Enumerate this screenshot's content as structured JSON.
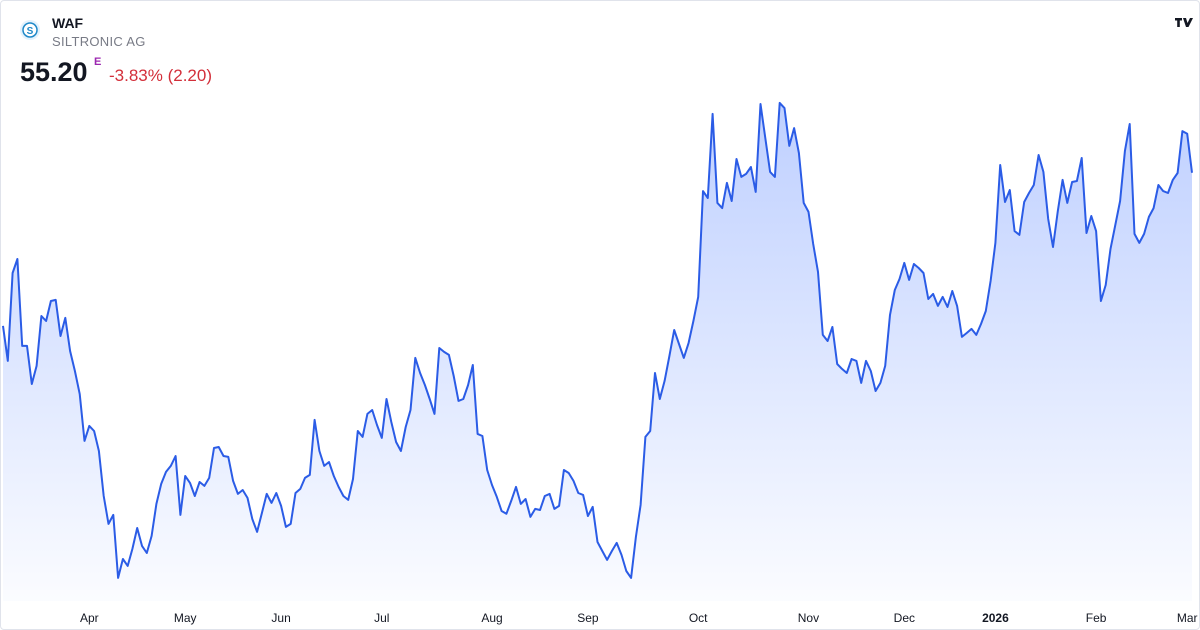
{
  "header": {
    "symbol": "WAF",
    "name": "SILTRONIC AG",
    "price": "55.20",
    "flag": "E",
    "change": "-3.83% (2.20)"
  },
  "chart_data": {
    "type": "area",
    "color": "#2b5ce6",
    "values": [
      46.54,
      44.56,
      49.53,
      50.32,
      45.41,
      45.41,
      43.26,
      44.28,
      47.1,
      46.82,
      47.95,
      48.01,
      45.97,
      46.99,
      45.12,
      43.99,
      42.7,
      40.04,
      40.89,
      40.6,
      39.47,
      36.93,
      35.35,
      35.86,
      32.3,
      33.37,
      32.98,
      33.94,
      35.12,
      34.11,
      33.71,
      34.67,
      36.48,
      37.61,
      38.29,
      38.63,
      39.19,
      35.86,
      38.06,
      37.67,
      36.93,
      37.72,
      37.5,
      37.95,
      39.64,
      39.7,
      39.19,
      39.14,
      37.78,
      37.05,
      37.27,
      36.82,
      35.63,
      34.9,
      35.97,
      37.05,
      36.54,
      37.1,
      36.37,
      35.18,
      35.35,
      37.1,
      37.33,
      37.95,
      38.12,
      41.23,
      39.47,
      38.63,
      38.85,
      38.06,
      37.44,
      36.93,
      36.71,
      37.89,
      40.6,
      40.27,
      41.57,
      41.79,
      40.94,
      40.21,
      42.41,
      41.11,
      39.98,
      39.47,
      40.83,
      41.79,
      44.73,
      43.88,
      43.2,
      42.41,
      41.57,
      45.29,
      45.07,
      44.9,
      43.71,
      42.3,
      42.41,
      43.2,
      44.33,
      40.44,
      40.32,
      38.4,
      37.55,
      36.88,
      36.08,
      35.92,
      36.65,
      37.44,
      36.48,
      36.76,
      35.75,
      36.2,
      36.14,
      36.93,
      37.05,
      36.2,
      36.37,
      38.4,
      38.23,
      37.78,
      37.1,
      36.99,
      35.8,
      36.31,
      34.33,
      33.82,
      33.32,
      33.82,
      34.28,
      33.6,
      32.69,
      32.3,
      34.62,
      36.42,
      40.27,
      40.6,
      43.88,
      42.41,
      43.43,
      44.84,
      46.31,
      45.52,
      44.73,
      45.58,
      46.82,
      48.18,
      54.16,
      53.77,
      58.52,
      53.49,
      53.2,
      54.62,
      53.6,
      55.97,
      54.96,
      55.13,
      55.52,
      54.11,
      59.08,
      57.16,
      55.24,
      54.96,
      59.14,
      58.85,
      56.71,
      57.72,
      56.31,
      53.49,
      52.98,
      51.17,
      49.59,
      46.03,
      45.69,
      46.48,
      44.39,
      44.11,
      43.88,
      44.67,
      44.56,
      43.32,
      44.56,
      43.99,
      42.86,
      43.32,
      44.28,
      47.16,
      48.57,
      49.19,
      50.1,
      49.14,
      50.04,
      49.81,
      49.53,
      48.06,
      48.35,
      47.67,
      48.18,
      47.61,
      48.51,
      47.67,
      45.92,
      46.14,
      46.37,
      46.03,
      46.65,
      47.38,
      49.08,
      51.23,
      55.63,
      53.54,
      54.22,
      51.9,
      51.68,
      53.54,
      54.05,
      54.5,
      56.2,
      55.24,
      52.58,
      51.0,
      53.03,
      54.79,
      53.49,
      54.67,
      54.73,
      56.03,
      51.79,
      52.75,
      51.9,
      47.95,
      48.85,
      50.89,
      52.24,
      53.6,
      56.42,
      57.95,
      51.74,
      51.23,
      51.74,
      52.7,
      53.2,
      54.5,
      54.16,
      54.05,
      54.79,
      55.18,
      57.55,
      57.4,
      55.2
    ],
    "ylim": [
      29.3,
      64.9
    ],
    "xticks": [
      {
        "value": 18,
        "label": "Apr"
      },
      {
        "value": 38,
        "label": "May"
      },
      {
        "value": 58,
        "label": "Jun"
      },
      {
        "value": 79,
        "label": "Jul"
      },
      {
        "value": 102,
        "label": "Aug"
      },
      {
        "value": 122,
        "label": "Sep"
      },
      {
        "value": 145,
        "label": "Oct"
      },
      {
        "value": 168,
        "label": "Nov"
      },
      {
        "value": 188,
        "label": "Dec"
      },
      {
        "value": 207,
        "label": "2026"
      },
      {
        "value": 228,
        "label": "Feb"
      },
      {
        "value": 247,
        "label": "Mar"
      }
    ]
  }
}
